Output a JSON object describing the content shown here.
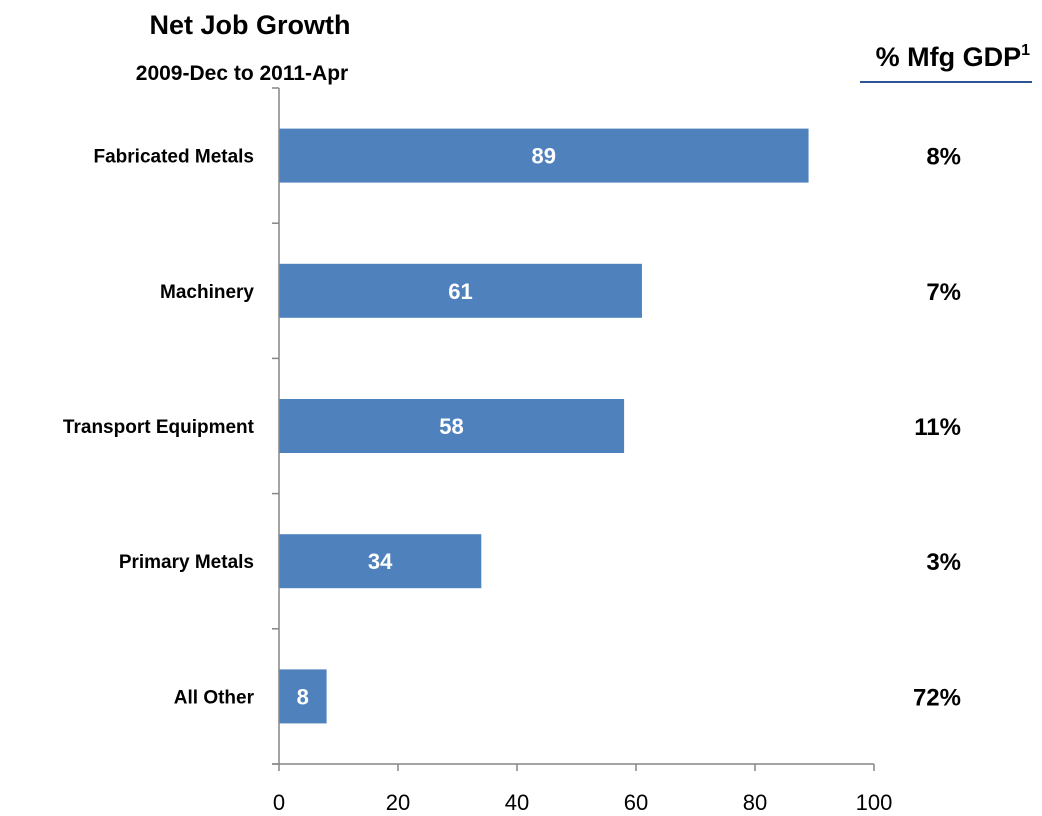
{
  "chart_data": {
    "type": "bar",
    "orientation": "horizontal",
    "title": "Net Job Growth",
    "subtitle": "2009-Dec to 2011-Apr",
    "categories": [
      "Fabricated Metals",
      "Machinery",
      "Transport Equipment",
      "Primary Metals",
      "All Other"
    ],
    "values": [
      89,
      61,
      58,
      34,
      8
    ],
    "data_labels": [
      "89",
      "61",
      "58",
      "34",
      "8"
    ],
    "xlim": [
      0,
      100
    ],
    "x_ticks": [
      0,
      20,
      40,
      60,
      80,
      100
    ],
    "x_tick_labels": [
      "0",
      "20",
      "40",
      "60",
      "80",
      "100"
    ],
    "bar_color": "#4F81BD",
    "grid": false,
    "side_column": {
      "header": "% Mfg GDP",
      "header_superscript": "1",
      "values": [
        "8%",
        "7%",
        "11%",
        "3%",
        "72%"
      ]
    }
  }
}
